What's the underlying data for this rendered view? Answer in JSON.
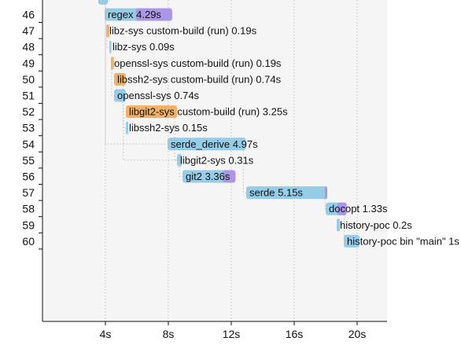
{
  "colors": {
    "background": "#ffffff",
    "plot_background": "#f5f5f5",
    "axis": "#111111",
    "grid": "#c4c4c4",
    "dependency_line": "#bdbdbd",
    "build": "#95cce8",
    "codegen": "#aa95e8",
    "custom_build": "#f0b165",
    "text": "#111111"
  },
  "chart_data": {
    "type": "bar",
    "orientation": "horizontal",
    "xlim": [
      0,
      22.2
    ],
    "x_ticks": [
      "4s",
      "8s",
      "12s",
      "16s",
      "20s"
    ],
    "x_tick_values": [
      4,
      8,
      12,
      16,
      20
    ],
    "y_ticks": [
      "46",
      "47",
      "48",
      "49",
      "50",
      "51",
      "52",
      "53",
      "54",
      "55",
      "56",
      "57",
      "58",
      "59",
      "60"
    ],
    "grid": "vertical, dotted",
    "units": [
      {
        "index": 45,
        "start": 3.55,
        "duration": 0.6,
        "codegen": 0,
        "kind": "build",
        "label": ""
      },
      {
        "index": 46,
        "start": 3.95,
        "duration": 4.29,
        "codegen": 2.3,
        "kind": "build",
        "label": "regex 4.29s"
      },
      {
        "index": 47,
        "start": 4.05,
        "duration": 0.19,
        "codegen": 0,
        "kind": "custom-build",
        "label": "libz-sys custom-build (run) 0.19s"
      },
      {
        "index": 48,
        "start": 4.25,
        "duration": 0.09,
        "codegen": 0,
        "kind": "build",
        "label": "libz-sys 0.09s"
      },
      {
        "index": 49,
        "start": 4.35,
        "duration": 0.19,
        "codegen": 0,
        "kind": "custom-build",
        "label": "openssl-sys custom-build (run) 0.19s"
      },
      {
        "index": 50,
        "start": 4.55,
        "duration": 0.74,
        "codegen": 0,
        "kind": "custom-build",
        "label": "libssh2-sys custom-build (run) 0.74s"
      },
      {
        "index": 51,
        "start": 4.55,
        "duration": 0.74,
        "codegen": 0,
        "kind": "build",
        "label": "openssl-sys 0.74s"
      },
      {
        "index": 52,
        "start": 5.3,
        "duration": 3.25,
        "codegen": 0,
        "kind": "custom-build",
        "label": "libgit2-sys custom-build (run) 3.25s"
      },
      {
        "index": 53,
        "start": 5.3,
        "duration": 0.15,
        "codegen": 0,
        "kind": "build",
        "label": "libssh2-sys 0.15s"
      },
      {
        "index": 54,
        "start": 7.95,
        "duration": 4.97,
        "codegen": 0,
        "kind": "build",
        "label": "serde_derive 4.97s"
      },
      {
        "index": 55,
        "start": 8.55,
        "duration": 0.31,
        "codegen": 0,
        "kind": "build",
        "label": "libgit2-sys 0.31s"
      },
      {
        "index": 56,
        "start": 8.9,
        "duration": 3.36,
        "codegen": 0.8,
        "kind": "build",
        "label": "git2 3.36s"
      },
      {
        "index": 57,
        "start": 12.95,
        "duration": 5.15,
        "codegen": 0.15,
        "kind": "build",
        "label": "serde 5.15s"
      },
      {
        "index": 58,
        "start": 18.0,
        "duration": 1.33,
        "codegen": 0.6,
        "kind": "build",
        "label": "docopt 1.33s"
      },
      {
        "index": 59,
        "start": 18.7,
        "duration": 0.2,
        "codegen": 0,
        "kind": "build",
        "label": "history-poc 0.2s"
      },
      {
        "index": 60,
        "start": 19.15,
        "duration": 1.0,
        "codegen": 0,
        "kind": "build",
        "label": "history-poc bin \"main\" 1s"
      }
    ],
    "dependencies": [
      [
        45,
        46
      ],
      [
        45,
        54
      ],
      [
        47,
        48
      ],
      [
        49,
        51
      ],
      [
        50,
        53
      ],
      [
        51,
        55
      ],
      [
        52,
        55
      ],
      [
        54,
        57
      ],
      [
        55,
        56
      ],
      [
        57,
        58
      ],
      [
        58,
        59
      ],
      [
        58,
        60
      ]
    ]
  }
}
